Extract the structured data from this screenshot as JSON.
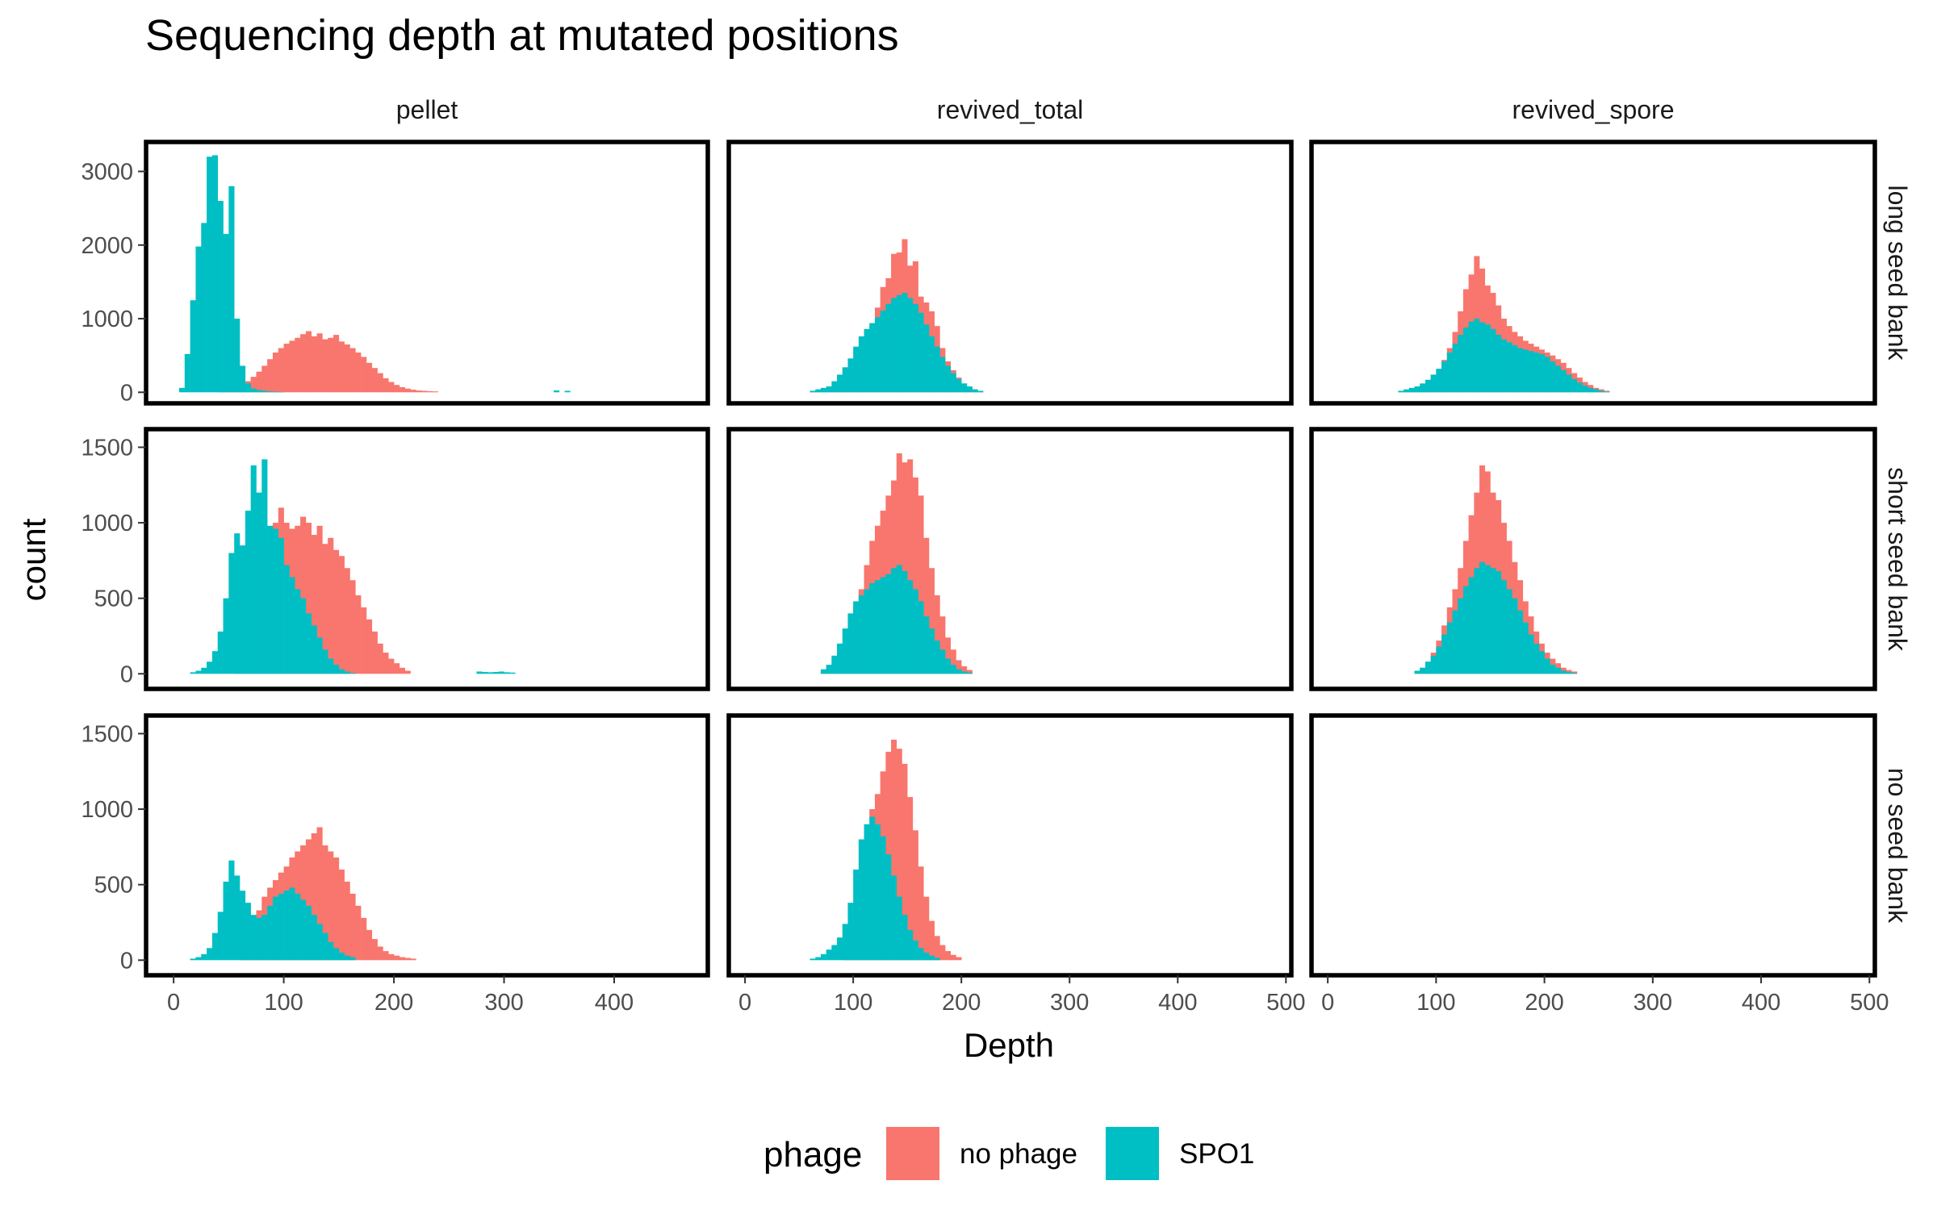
{
  "chart_data": {
    "type": "histogram",
    "title": "Sequencing depth at mutated positions",
    "xlabel": "Depth",
    "ylabel": "count",
    "grid": false,
    "legend": {
      "title": "phage",
      "placement": "bottom",
      "entries": [
        {
          "label": "no phage",
          "color": "#F8766D"
        },
        {
          "label": "SPO1",
          "color": "#00BFC4"
        }
      ]
    },
    "columns": [
      "pellet",
      "revived_total",
      "revived_spore"
    ],
    "rows": [
      "long seed bank",
      "short seed bank",
      "no seed bank"
    ],
    "column_xlim": [
      [
        -25,
        485
      ],
      [
        -15,
        505
      ],
      [
        -15,
        505
      ]
    ],
    "column_xticks": [
      [
        0,
        100,
        200,
        300,
        400
      ],
      [
        0,
        100,
        200,
        300,
        400,
        500
      ],
      [
        0,
        100,
        200,
        300,
        400,
        500
      ]
    ],
    "row_ylim": [
      [
        -150,
        3400
      ],
      [
        -100,
        1620
      ],
      [
        -100,
        1620
      ]
    ],
    "row_yticks": [
      [
        0,
        1000,
        2000,
        3000
      ],
      [
        0,
        500,
        1000,
        1500
      ],
      [
        0,
        500,
        1000,
        1500
      ]
    ],
    "bin_width": 5,
    "panels": [
      {
        "row": 0,
        "col": 0,
        "series": [
          {
            "name": "no phage",
            "bin_start": 40,
            "counts": [
              15,
              30,
              60,
              80,
              110,
              150,
              210,
              280,
              360,
              450,
              540,
              600,
              660,
              700,
              740,
              790,
              830,
              760,
              800,
              720,
              740,
              780,
              690,
              650,
              600,
              540,
              480,
              400,
              330,
              260,
              190,
              140,
              100,
              70,
              50,
              35,
              25,
              20,
              15,
              12
            ]
          },
          {
            "name": "SPO1",
            "bin_start": 5,
            "counts": [
              60,
              520,
              1250,
              1980,
              2300,
              3200,
              3220,
              2600,
              2150,
              2800,
              1000,
              360,
              120,
              50,
              30,
              20,
              12,
              8,
              5
            ]
          },
          {
            "name": "SPO1",
            "bin_start": 345,
            "counts": [
              25,
              0,
              20
            ]
          }
        ]
      },
      {
        "row": 0,
        "col": 1,
        "series": [
          {
            "name": "no phage",
            "bin_start": 60,
            "counts": [
              10,
              20,
              30,
              50,
              80,
              120,
              180,
              260,
              380,
              520,
              720,
              900,
              1150,
              1430,
              1550,
              1880,
              1900,
              2080,
              1720,
              1780,
              1300,
              1220,
              1100,
              900,
              600,
              420,
              300,
              200,
              120,
              70,
              40,
              20
            ]
          },
          {
            "name": "SPO1",
            "bin_start": 60,
            "counts": [
              20,
              40,
              60,
              80,
              150,
              240,
              340,
              460,
              620,
              760,
              860,
              940,
              1020,
              1110,
              1200,
              1280,
              1320,
              1350,
              1280,
              1200,
              1080,
              920,
              760,
              620,
              480,
              360,
              260,
              180,
              120,
              80,
              40,
              20
            ]
          }
        ]
      },
      {
        "row": 0,
        "col": 2,
        "series": [
          {
            "name": "no phage",
            "bin_start": 65,
            "counts": [
              10,
              20,
              40,
              60,
              100,
              140,
              200,
              300,
              440,
              600,
              820,
              1100,
              1400,
              1600,
              1850,
              1680,
              1450,
              1350,
              1180,
              1000,
              900,
              820,
              760,
              700,
              660,
              620,
              580,
              540,
              500,
              450,
              400,
              330,
              260,
              200,
              140,
              100,
              60,
              40,
              20
            ]
          },
          {
            "name": "SPO1",
            "bin_start": 65,
            "counts": [
              20,
              40,
              60,
              80,
              120,
              170,
              240,
              320,
              420,
              540,
              660,
              780,
              880,
              960,
              1000,
              950,
              920,
              860,
              780,
              720,
              680,
              640,
              600,
              580,
              560,
              540,
              520,
              480,
              420,
              360,
              300,
              240,
              180,
              130,
              90,
              60,
              40,
              20,
              10
            ]
          }
        ]
      },
      {
        "row": 1,
        "col": 0,
        "series": [
          {
            "name": "no phage",
            "bin_start": 55,
            "counts": [
              30,
              80,
              180,
              300,
              500,
              700,
              880,
              1000,
              1100,
              1000,
              960,
              980,
              1040,
              1000,
              920,
              980,
              860,
              900,
              820,
              780,
              700,
              620,
              520,
              440,
              360,
              280,
              200,
              140,
              100,
              70,
              40,
              20
            ]
          },
          {
            "name": "SPO1",
            "bin_start": 15,
            "counts": [
              10,
              20,
              40,
              80,
              150,
              280,
              500,
              800,
              930,
              850,
              1080,
              1380,
              1200,
              1420,
              980,
              960,
              900,
              720,
              640,
              560,
              500,
              400,
              320,
              240,
              160,
              100,
              60,
              30,
              15,
              5
            ]
          },
          {
            "name": "SPO1",
            "bin_start": 275,
            "counts": [
              15,
              12,
              10,
              12,
              15,
              10,
              8
            ]
          }
        ]
      },
      {
        "row": 1,
        "col": 1,
        "series": [
          {
            "name": "no phage",
            "bin_start": 70,
            "counts": [
              20,
              40,
              80,
              140,
              200,
              320,
              450,
              560,
              720,
              880,
              980,
              1080,
              1180,
              1280,
              1460,
              1400,
              1420,
              1300,
              1180,
              900,
              700,
              520,
              380,
              240,
              160,
              90,
              50,
              25
            ]
          },
          {
            "name": "SPO1",
            "bin_start": 70,
            "counts": [
              30,
              60,
              120,
              200,
              300,
              400,
              480,
              520,
              560,
              600,
              620,
              640,
              660,
              700,
              720,
              680,
              620,
              560,
              480,
              380,
              300,
              220,
              160,
              100,
              60,
              30,
              15,
              8
            ]
          }
        ]
      },
      {
        "row": 1,
        "col": 2,
        "series": [
          {
            "name": "no phage",
            "bin_start": 80,
            "counts": [
              20,
              40,
              80,
              140,
              220,
              320,
              440,
              560,
              700,
              880,
              1050,
              1200,
              1380,
              1340,
              1200,
              1150,
              1000,
              880,
              740,
              620,
              480,
              380,
              280,
              200,
              140,
              100,
              70,
              40,
              25,
              15
            ]
          },
          {
            "name": "SPO1",
            "bin_start": 80,
            "counts": [
              20,
              40,
              80,
              120,
              180,
              260,
              340,
              420,
              500,
              580,
              640,
              700,
              740,
              720,
              700,
              680,
              620,
              560,
              500,
              420,
              340,
              260,
              200,
              150,
              100,
              60,
              40,
              20,
              12,
              6
            ]
          }
        ]
      },
      {
        "row": 2,
        "col": 0,
        "series": [
          {
            "name": "no phage",
            "bin_start": 60,
            "counts": [
              80,
              160,
              250,
              330,
              420,
              480,
              530,
              580,
              620,
              680,
              720,
              760,
              800,
              840,
              880,
              760,
              720,
              680,
              600,
              520,
              440,
              360,
              280,
              200,
              140,
              90,
              60,
              40,
              30,
              20,
              15,
              10
            ]
          },
          {
            "name": "SPO1",
            "bin_start": 15,
            "counts": [
              10,
              20,
              40,
              80,
              180,
              320,
              520,
              660,
              560,
              460,
              380,
              300,
              280,
              300,
              360,
              420,
              440,
              460,
              480,
              440,
              400,
              360,
              300,
              240,
              180,
              120,
              80,
              50,
              30,
              20
            ]
          }
        ]
      },
      {
        "row": 2,
        "col": 1,
        "series": [
          {
            "name": "no phage",
            "bin_start": 90,
            "counts": [
              40,
              100,
              240,
              500,
              800,
              1000,
              1100,
              1250,
              1380,
              1460,
              1400,
              1300,
              1080,
              860,
              620,
              420,
              260,
              160,
              100,
              60,
              35,
              20
            ]
          },
          {
            "name": "SPO1",
            "bin_start": 60,
            "counts": [
              10,
              20,
              40,
              70,
              100,
              150,
              240,
              380,
              600,
              800,
              900,
              950,
              900,
              820,
              700,
              560,
              420,
              300,
              200,
              130,
              80,
              50,
              30,
              15
            ]
          }
        ]
      },
      {
        "row": 2,
        "col": 2,
        "series": []
      }
    ]
  }
}
